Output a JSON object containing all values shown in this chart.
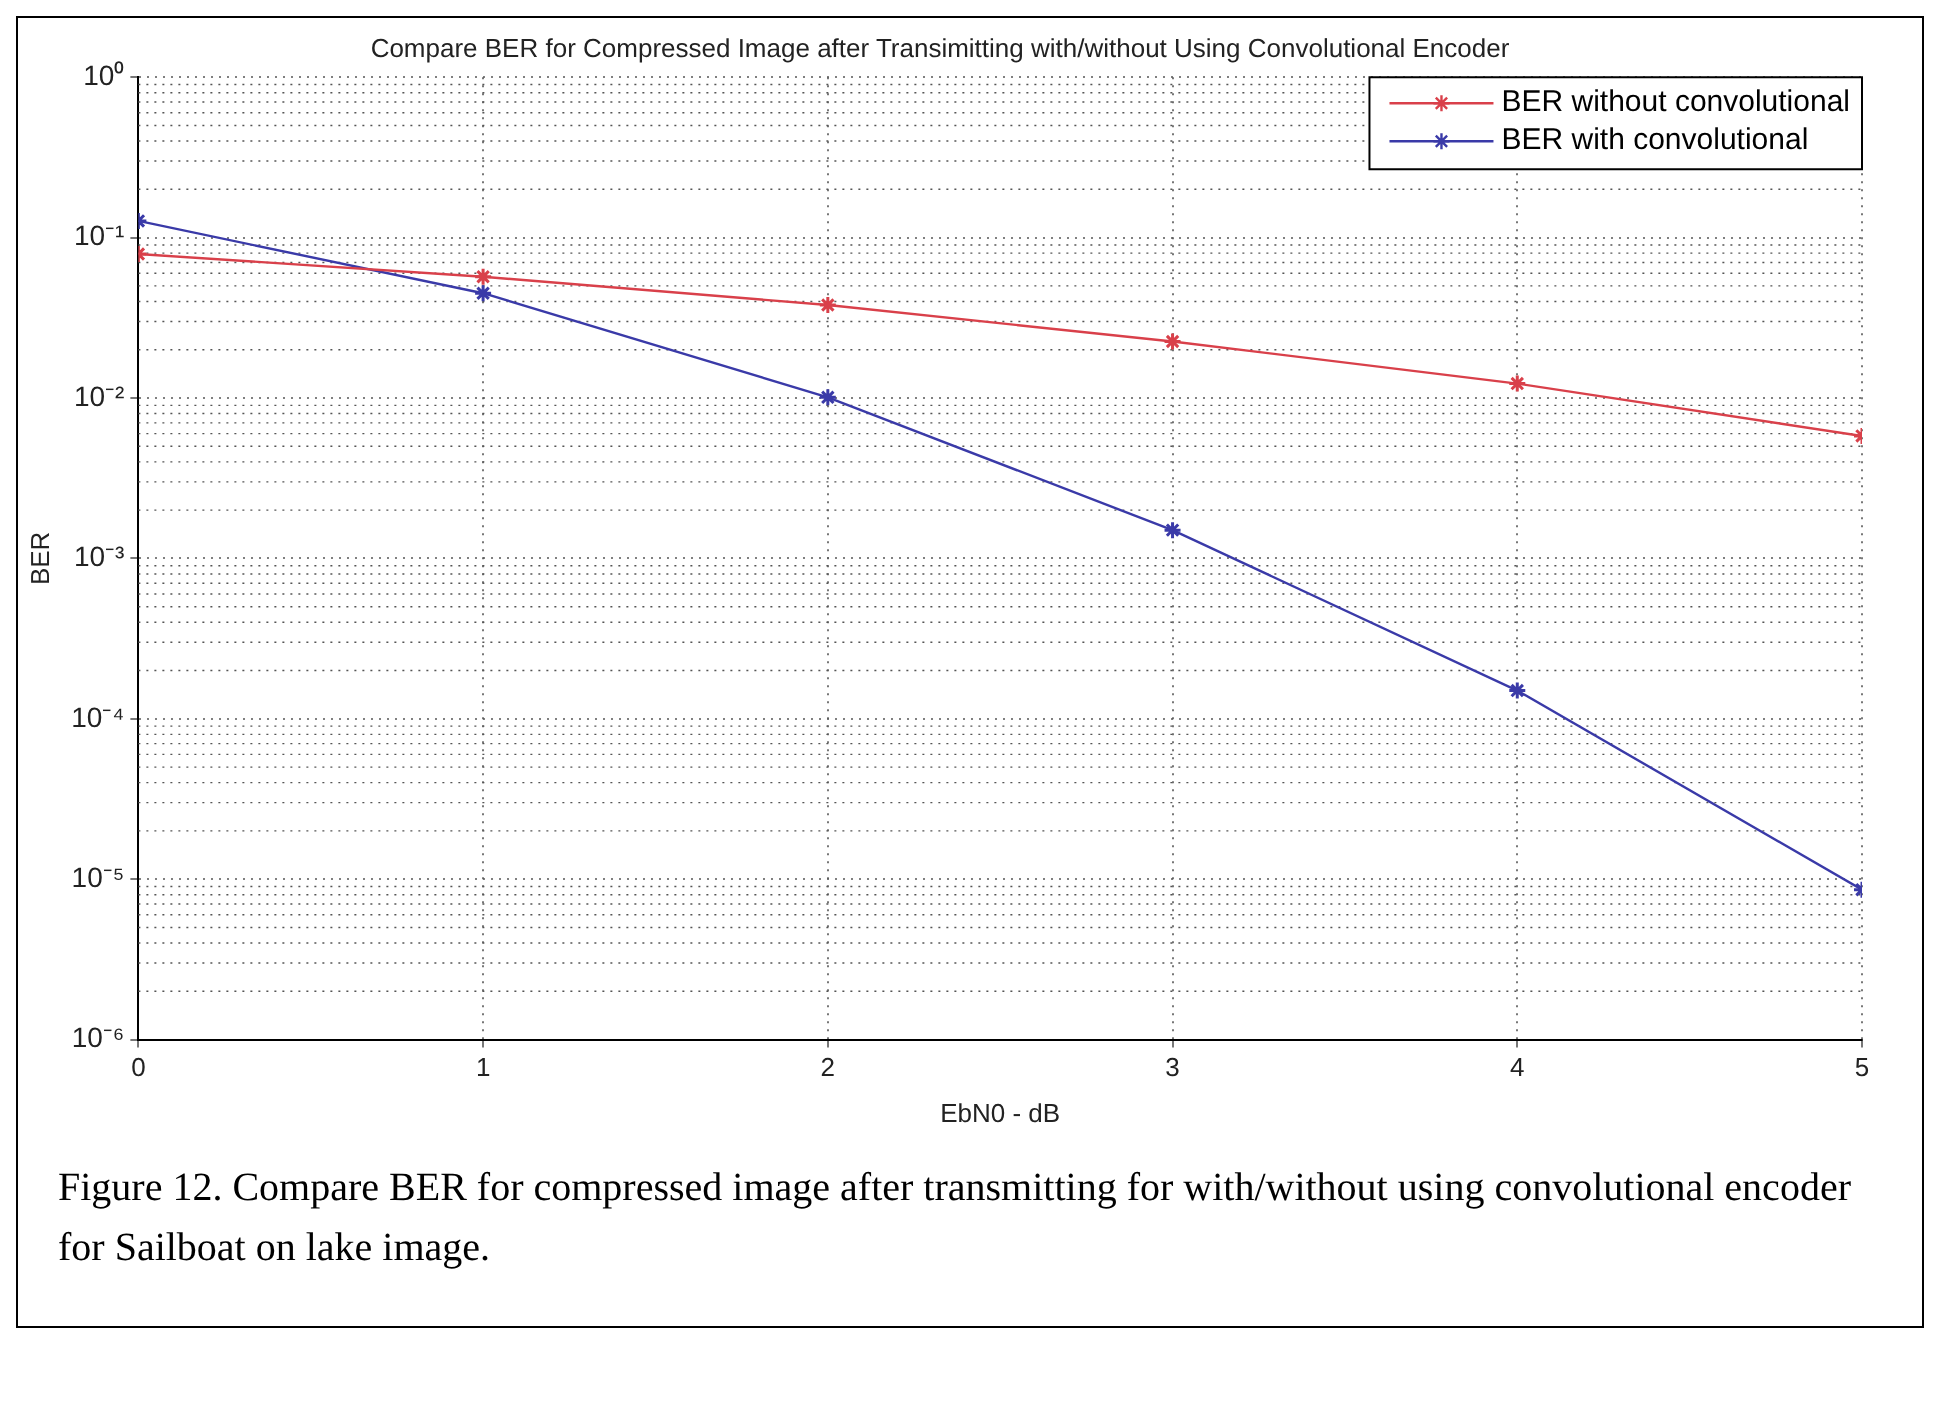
{
  "chart_data": {
    "type": "line",
    "title": "Compare BER for Compressed Image after Transimitting with/without Using Convolutional Encoder",
    "xlabel": "EbN0 - dB",
    "ylabel": "BER",
    "x": [
      0,
      1,
      2,
      3,
      4,
      5
    ],
    "series": [
      {
        "name": "BER without convolutional",
        "color": "#d9404a",
        "values": [
          0.079,
          0.057,
          0.038,
          0.0225,
          0.0123,
          0.0058
        ]
      },
      {
        "name": "BER with convolutional",
        "color": "#3a3aa8",
        "values": [
          0.127,
          0.045,
          0.0101,
          0.0015,
          0.00015,
          8.6e-06
        ]
      }
    ],
    "log": "y",
    "xlim": [
      0,
      5
    ],
    "xticks": [
      0,
      1,
      2,
      3,
      4,
      5
    ],
    "ylim": [
      1e-06,
      1
    ],
    "yticks": [
      {
        "value": 1e-06,
        "label": "10⁻⁶"
      },
      {
        "value": 1e-05,
        "label": "10⁻⁵"
      },
      {
        "value": 0.0001,
        "label": "10⁻⁴"
      },
      {
        "value": 0.001,
        "label": "10⁻³"
      },
      {
        "value": 0.01,
        "label": "10⁻²"
      },
      {
        "value": 0.1,
        "label": "10⁻¹"
      },
      {
        "value": 1,
        "label": "10⁰"
      }
    ],
    "grid": true,
    "legend": "top right",
    "marker": "cross",
    "line_style": "solid",
    "annotations": [
      "Figure 12. Compare BER for compressed image after transmitting for with/without using  convolutional encoder for Sailboat on lake image."
    ]
  }
}
